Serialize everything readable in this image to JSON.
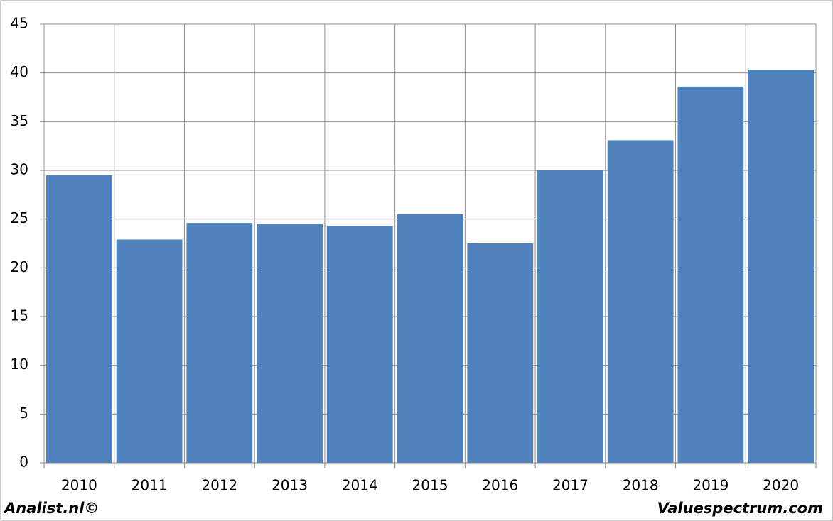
{
  "chart_data": {
    "type": "bar",
    "categories": [
      "2010",
      "2011",
      "2012",
      "2013",
      "2014",
      "2015",
      "2016",
      "2017",
      "2018",
      "2019",
      "2020"
    ],
    "values": [
      29.5,
      22.9,
      24.6,
      24.5,
      24.3,
      25.5,
      22.5,
      30.0,
      33.1,
      38.6,
      40.3
    ],
    "color": "#4f81bd",
    "ylim": [
      0,
      45
    ],
    "yticks": [
      0,
      5,
      10,
      15,
      20,
      25,
      30,
      35,
      40,
      45
    ],
    "grid": true,
    "annotations": [
      "Analist.nl©",
      "Valuespectrum.com"
    ]
  }
}
